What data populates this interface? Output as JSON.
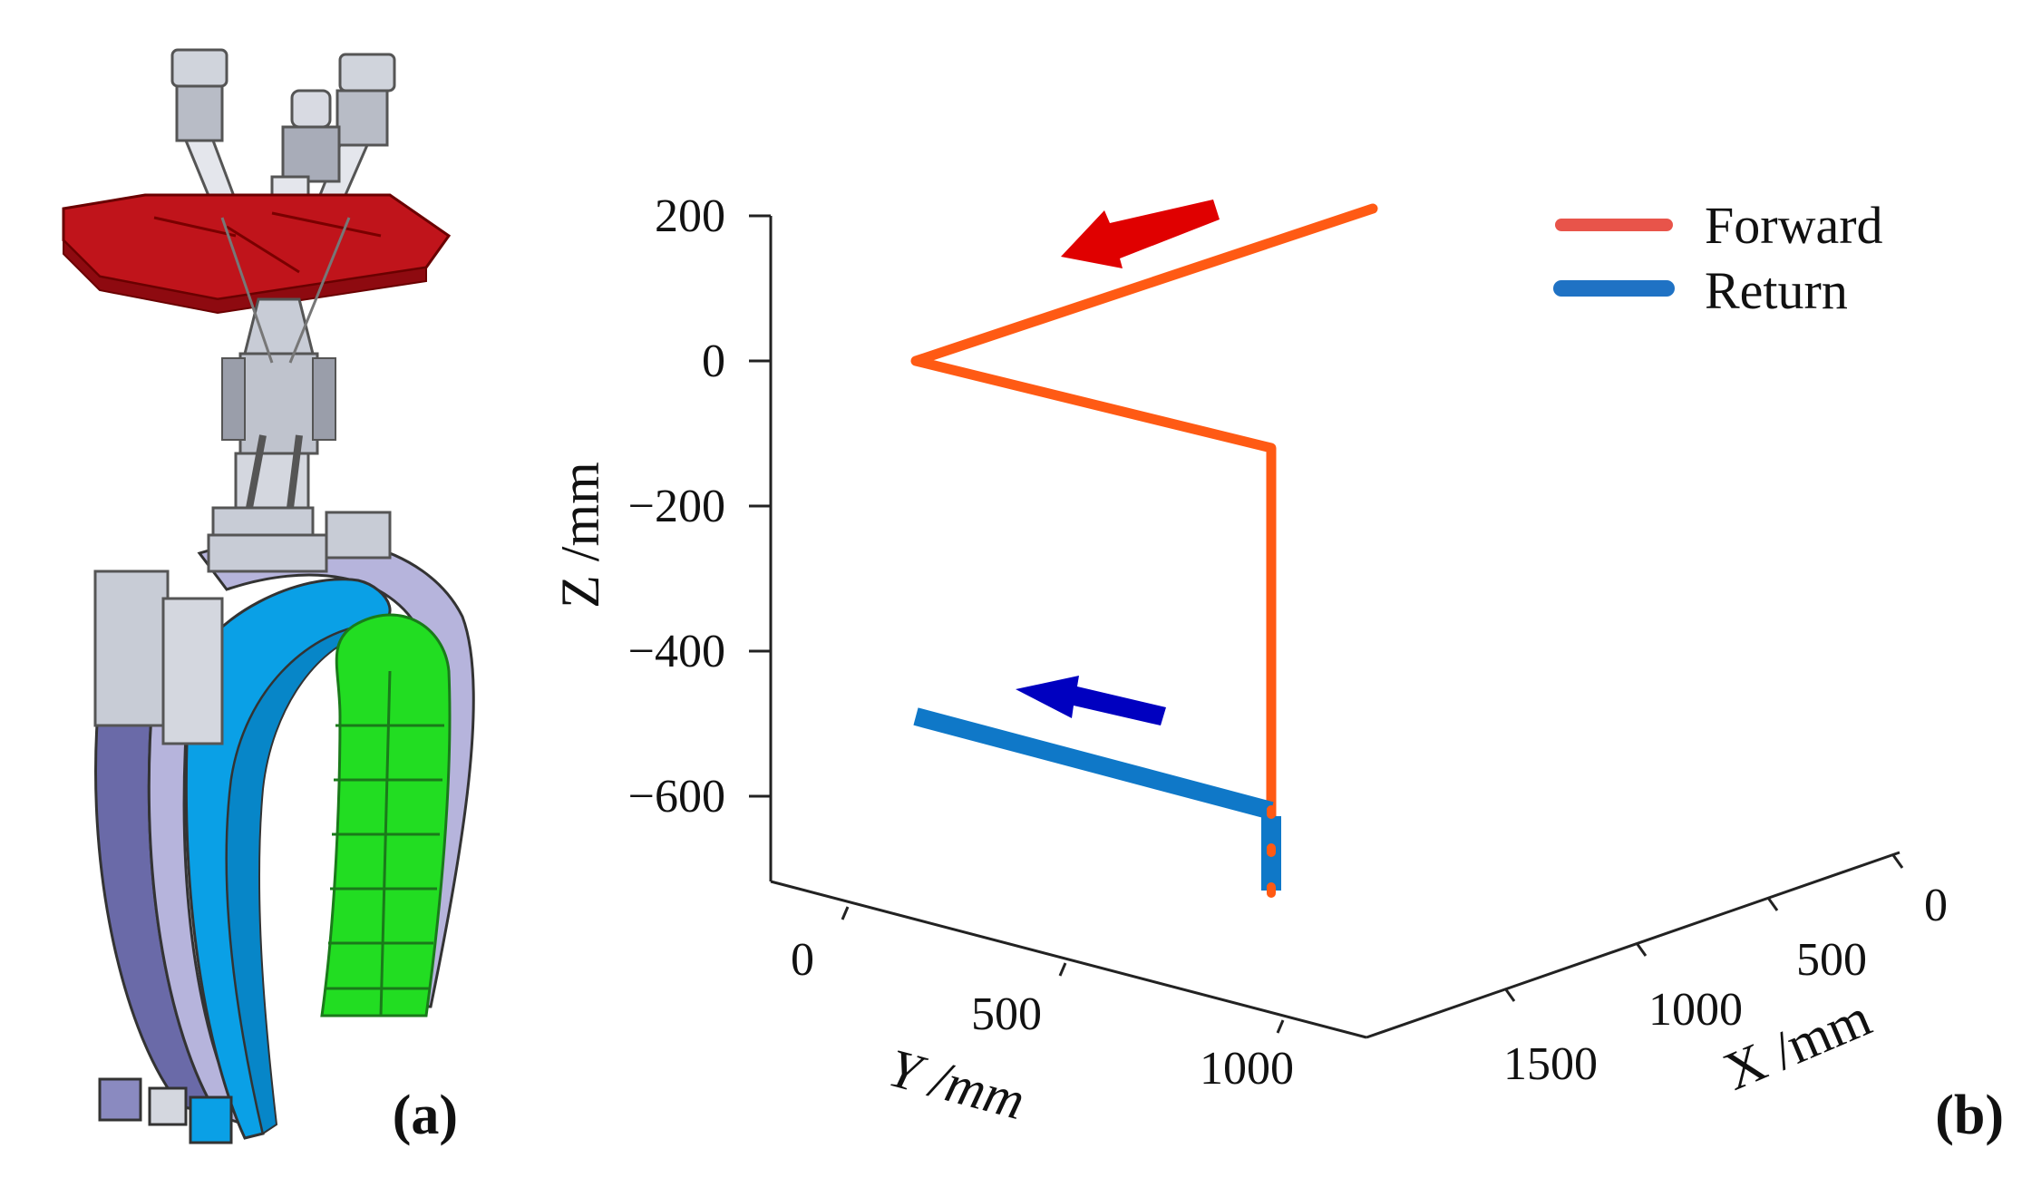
{
  "panel_a": {
    "label_open": "(",
    "label_letter": "a",
    "label_close": ")",
    "colors": {
      "top_plate": "#c0141b",
      "robot_gray": "#c8ccd6",
      "shell_blue": "#0aa0e6",
      "shell_lavender": "#b6b4dc",
      "shell_dark": "#6a6aa8",
      "blanket_green": "#22dd22"
    }
  },
  "panel_b": {
    "label_open": "(",
    "label_letter": "b",
    "label_close": ")",
    "forward_arrow_color": "#e00000",
    "return_arrow_color": "#0000c0"
  },
  "chart_data": {
    "type": "line",
    "projection": "3d",
    "zlabel": "Z /mm",
    "ylabel": "Y /mm",
    "xlabel": "X /mm",
    "z_ticks": [
      "200",
      "0",
      "−200",
      "−400",
      "−600"
    ],
    "z_tick_values": [
      200,
      0,
      -200,
      -400,
      -600
    ],
    "y_ticks": [
      "0",
      "500",
      "1000"
    ],
    "x_ticks": [
      "0",
      "500",
      "1000",
      "1500"
    ],
    "zlim": [
      -700,
      200
    ],
    "legend": [
      {
        "name": "Forward",
        "color": "#e8544a"
      },
      {
        "name": "Return",
        "color": "#1f72c4"
      }
    ],
    "series": [
      {
        "name": "Forward",
        "color": "#ff5a14",
        "points_yz": [
          [
            1200,
            210
          ],
          [
            300,
            0
          ],
          [
            1000,
            -120
          ],
          [
            1000,
            -720
          ]
        ]
      },
      {
        "name": "Return",
        "color": "#0f78c8",
        "points_yz": [
          [
            1000,
            -720
          ],
          [
            1000,
            -620
          ],
          [
            300,
            -490
          ]
        ]
      }
    ]
  }
}
